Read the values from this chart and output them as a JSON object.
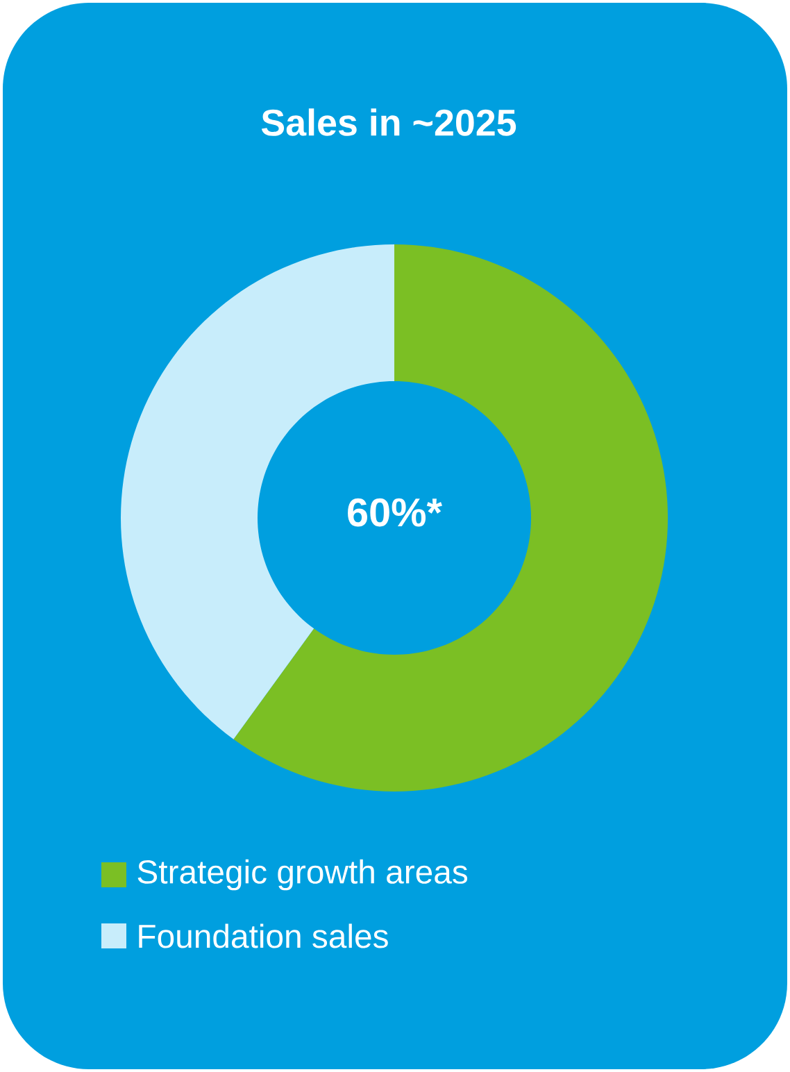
{
  "chart_data": {
    "type": "donut",
    "title": "Sales in ~2025",
    "categories": [
      "Strategic growth areas",
      "Foundation sales"
    ],
    "values": [
      60,
      40
    ],
    "colors": [
      "#7bbf24",
      "#c8edfb"
    ],
    "annotations": [
      "60%*"
    ],
    "legend": "bottom"
  }
}
